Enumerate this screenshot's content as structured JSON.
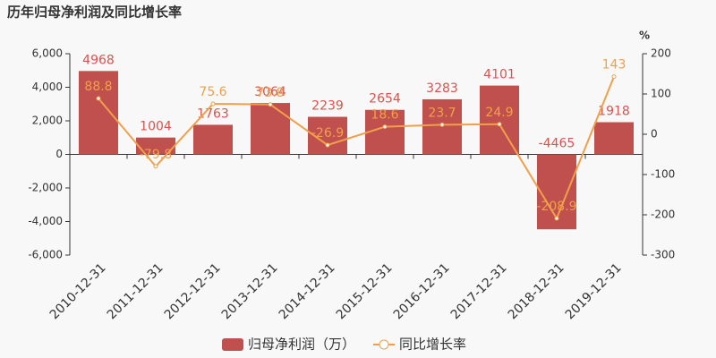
{
  "chart_data": {
    "type": "bar",
    "title": "历年归母净利润及同比增长率",
    "y2label": "%",
    "categories": [
      "2010-12-31",
      "2011-12-31",
      "2012-12-31",
      "2013-12-31",
      "2014-12-31",
      "2015-12-31",
      "2016-12-31",
      "2017-12-31",
      "2018-12-31",
      "2019-12-31"
    ],
    "series": [
      {
        "name": "归母净利润（万）",
        "type": "bar",
        "color": "#c0504d",
        "label_color": "#d9534f",
        "values": [
          4968,
          1004,
          1763,
          3064,
          2239,
          2654,
          3283,
          4101,
          -4465,
          1918
        ]
      },
      {
        "name": "同比增长率",
        "type": "line",
        "axis": "y2",
        "color": "#f0a04b",
        "label_color": "#f0a04b",
        "values": [
          88.8,
          -79.8,
          75.6,
          73.8,
          -26.9,
          18.6,
          23.7,
          24.9,
          -208.9,
          143
        ]
      }
    ],
    "ylim": [
      -6000,
      6000
    ],
    "yticks": [
      {
        "value": -6000,
        "label": "-6,000"
      },
      {
        "value": -4000,
        "label": "-4,000"
      },
      {
        "value": -2000,
        "label": "-2,000"
      },
      0,
      {
        "value": 2000,
        "label": "2,000"
      },
      {
        "value": 4000,
        "label": "4,000"
      },
      {
        "value": 6000,
        "label": "6,000"
      }
    ],
    "y2lim": [
      -300,
      200
    ],
    "y2ticks": [
      -300,
      -200,
      -100,
      0,
      100,
      200
    ],
    "grid": false
  }
}
